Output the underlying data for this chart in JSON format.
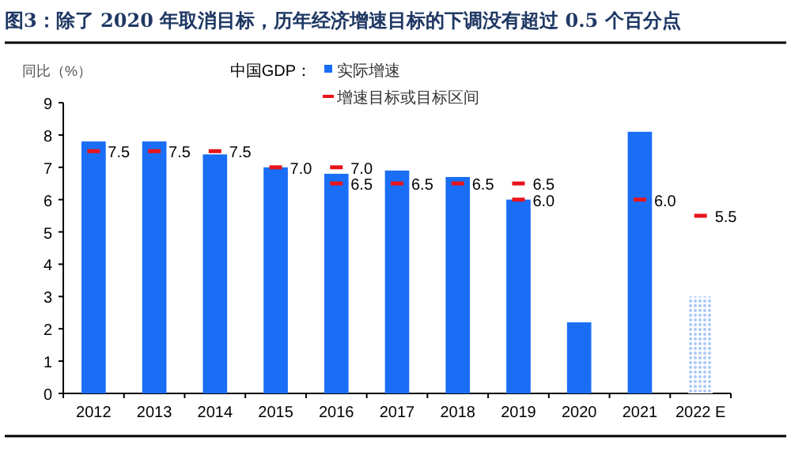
{
  "chart_data": {
    "type": "bar",
    "title": "图3：除了 2020 年取消目标，历年经济增速目标的下调没有超过 0.5 个百分点",
    "ylabel": "同比（%）",
    "legend_title": "中国GDP：",
    "categories": [
      "2012",
      "2013",
      "2014",
      "2015",
      "2016",
      "2017",
      "2018",
      "2019",
      "2020",
      "2021",
      "2022 E"
    ],
    "ylim": [
      0,
      9
    ],
    "yticks": [
      0,
      1,
      2,
      3,
      4,
      5,
      6,
      7,
      8,
      9
    ],
    "grid": false,
    "legend": "top",
    "series": [
      {
        "name": "实际增速",
        "color": "#1a6ef5",
        "colors": [
          "#1a6ef5",
          "#1a6ef5",
          "#1a6ef5",
          "#1a6ef5",
          "#1a6ef5",
          "#1a6ef5",
          "#1a6ef5",
          "#1a6ef5",
          "#1a6ef5",
          "#1a6ef5",
          "#a9c8f7"
        ],
        "values": [
          7.8,
          7.8,
          7.4,
          7.0,
          6.8,
          6.9,
          6.7,
          6.0,
          2.2,
          8.1,
          3.0
        ]
      },
      {
        "type": "scatter",
        "name": "增速目标或目标区间",
        "color": "#e8141c",
        "values": [
          7.5,
          7.5,
          7.5,
          7.0,
          7.0,
          6.5,
          6.5,
          6.5,
          null,
          6.0,
          5.5
        ],
        "value_labels": [
          "7.5",
          "7.5",
          "7.5",
          "7.0",
          "7.0",
          "6.5",
          "6.5",
          "6.5",
          null,
          "6.0",
          "5.5"
        ]
      },
      {
        "type": "scatter",
        "color": "#e8141c",
        "values": [
          null,
          null,
          null,
          null,
          6.5,
          null,
          null,
          6.0,
          null,
          null,
          null
        ],
        "value_labels": [
          null,
          null,
          null,
          null,
          "6.5",
          null,
          null,
          "6.0",
          null,
          null,
          null
        ]
      }
    ]
  }
}
